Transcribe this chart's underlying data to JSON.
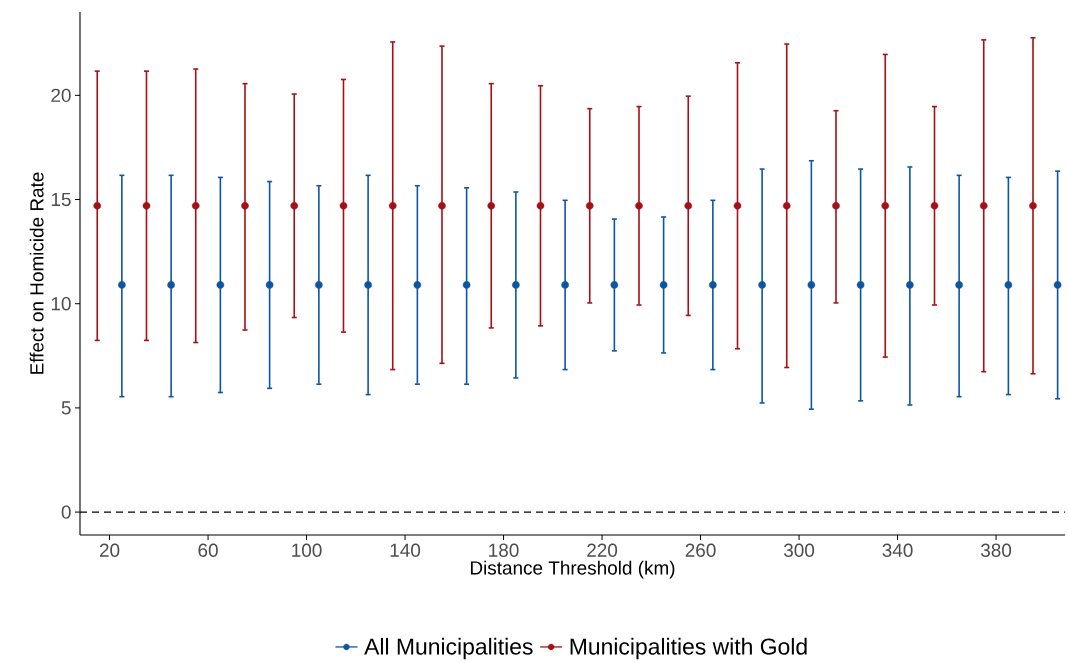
{
  "chart_data": {
    "type": "scatter",
    "xlabel": "Distance Threshold (km)",
    "ylabel": "Effect on Homicide Rate",
    "xlim": [
      8,
      408
    ],
    "ylim": [
      -1.1,
      24.0
    ],
    "xticks": [
      20,
      60,
      100,
      140,
      180,
      220,
      260,
      300,
      340,
      380
    ],
    "yticks": [
      0,
      5,
      10,
      15,
      20
    ],
    "marker": "circle",
    "legend": "bottom",
    "ref_lines": [
      {
        "axis": "y",
        "value": 0,
        "line_style": "dashed",
        "color": "#000000"
      }
    ],
    "series": [
      {
        "name": "All Municipalities",
        "color": "#0b55a3",
        "x": [
          25,
          45,
          65,
          85,
          105,
          125,
          145,
          165,
          185,
          205,
          225,
          245,
          265,
          285,
          305,
          325,
          345,
          365,
          385,
          405
        ],
        "values": [
          10.9,
          10.9,
          10.9,
          10.9,
          10.9,
          10.9,
          10.9,
          10.9,
          10.9,
          10.9,
          10.9,
          10.9,
          10.9,
          10.9,
          10.9,
          10.9,
          10.9,
          10.9,
          10.9,
          10.9
        ],
        "errors": [
          [
            5.5,
            16.2
          ],
          [
            5.5,
            16.2
          ],
          [
            5.7,
            16.1
          ],
          [
            5.9,
            15.9
          ],
          [
            6.1,
            15.7
          ],
          [
            5.6,
            16.2
          ],
          [
            6.1,
            15.7
          ],
          [
            6.1,
            15.6
          ],
          [
            6.4,
            15.4
          ],
          [
            6.8,
            15.0
          ],
          [
            7.7,
            14.1
          ],
          [
            7.6,
            14.2
          ],
          [
            6.8,
            15.0
          ],
          [
            5.2,
            16.5
          ],
          [
            4.9,
            16.9
          ],
          [
            5.3,
            16.5
          ],
          [
            5.1,
            16.6
          ],
          [
            5.5,
            16.2
          ],
          [
            5.6,
            16.1
          ],
          [
            5.4,
            16.4
          ]
        ]
      },
      {
        "name": "Municipalities with Gold",
        "color": "#a50f15",
        "x": [
          15,
          35,
          55,
          75,
          95,
          115,
          135,
          155,
          175,
          195,
          215,
          235,
          255,
          275,
          295,
          315,
          335,
          355,
          375,
          395
        ],
        "values": [
          14.7,
          14.7,
          14.7,
          14.7,
          14.7,
          14.7,
          14.7,
          14.7,
          14.7,
          14.7,
          14.7,
          14.7,
          14.7,
          14.7,
          14.7,
          14.7,
          14.7,
          14.7,
          14.7,
          14.7
        ],
        "errors": [
          [
            8.2,
            21.2
          ],
          [
            8.2,
            21.2
          ],
          [
            8.1,
            21.3
          ],
          [
            8.7,
            20.6
          ],
          [
            9.3,
            20.1
          ],
          [
            8.6,
            20.8
          ],
          [
            6.8,
            22.6
          ],
          [
            7.1,
            22.4
          ],
          [
            8.8,
            20.6
          ],
          [
            8.9,
            20.5
          ],
          [
            10.0,
            19.4
          ],
          [
            9.9,
            19.5
          ],
          [
            9.4,
            20.0
          ],
          [
            7.8,
            21.6
          ],
          [
            6.9,
            22.5
          ],
          [
            10.0,
            19.3
          ],
          [
            7.4,
            22.0
          ],
          [
            9.9,
            19.5
          ],
          [
            6.7,
            22.7
          ],
          [
            6.6,
            22.8
          ]
        ]
      }
    ]
  }
}
